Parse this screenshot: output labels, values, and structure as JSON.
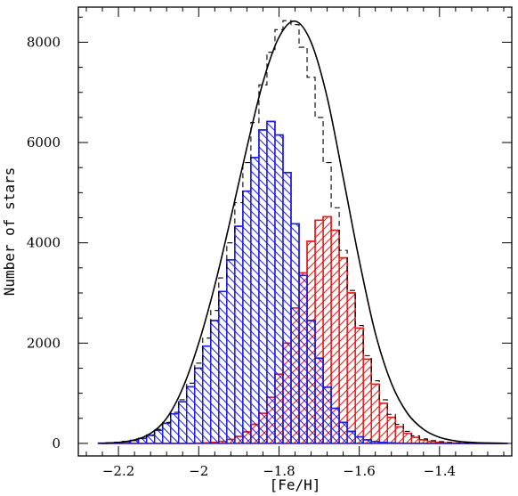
{
  "chart_data": {
    "type": "line",
    "xlabel": "[Fe/H]",
    "ylabel": "Number of stars",
    "xlim": [
      -2.3,
      -1.22
    ],
    "ylim": [
      -250,
      8700
    ],
    "x_ticks": [
      -2.2,
      -2.0,
      -1.8,
      -1.6,
      -1.4
    ],
    "x_tick_labels": [
      "−2.2",
      "−2",
      "−1.8",
      "−1.6",
      "−1.4"
    ],
    "y_ticks": [
      0,
      2000,
      4000,
      6000,
      8000
    ],
    "y_tick_labels": [
      "0",
      "2000",
      "4000",
      "6000",
      "8000"
    ],
    "grid": false,
    "legend": "none",
    "bin_width": 0.02,
    "colors": {
      "total": "#000000",
      "blue": "#1e1ee0",
      "red": "#e01e1e"
    },
    "series": [
      {
        "style": "black-smooth-curve",
        "x": [
          -2.24,
          -2.2,
          -2.16,
          -2.12,
          -2.08,
          -2.04,
          -2.0,
          -1.96,
          -1.92,
          -1.88,
          -1.84,
          -1.8,
          -1.76,
          -1.72,
          -1.68,
          -1.64,
          -1.6,
          -1.56,
          -1.52,
          -1.48,
          -1.44,
          -1.4,
          -1.36,
          -1.32,
          -1.28,
          -1.24
        ],
        "values": [
          3,
          20,
          70,
          200,
          500,
          1100,
          2000,
          3150,
          4500,
          5900,
          7200,
          8100,
          8420,
          8000,
          6900,
          5300,
          3650,
          2200,
          1200,
          600,
          280,
          120,
          50,
          20,
          8,
          3
        ]
      },
      {
        "style": "black-dashed-histogram",
        "x": [
          -2.24,
          -2.22,
          -2.2,
          -2.18,
          -2.16,
          -2.14,
          -2.12,
          -2.1,
          -2.08,
          -2.06,
          -2.04,
          -2.02,
          -2.0,
          -1.98,
          -1.96,
          -1.94,
          -1.92,
          -1.9,
          -1.88,
          -1.86,
          -1.84,
          -1.82,
          -1.8,
          -1.78,
          -1.76,
          -1.74,
          -1.72,
          -1.7,
          -1.68,
          -1.66,
          -1.64,
          -1.62,
          -1.6,
          -1.58,
          -1.56,
          -1.54,
          -1.52,
          -1.5,
          -1.48,
          -1.46,
          -1.44,
          -1.42,
          -1.4,
          -1.38,
          -1.36,
          -1.34,
          -1.32,
          -1.3,
          -1.28,
          -1.26,
          -1.24
        ],
        "values": [
          5,
          10,
          20,
          35,
          60,
          100,
          170,
          280,
          420,
          620,
          870,
          1200,
          1600,
          2100,
          2650,
          3300,
          4000,
          4800,
          5600,
          6400,
          7150,
          7800,
          8250,
          8430,
          8350,
          7900,
          7300,
          6500,
          5600,
          4700,
          3850,
          3050,
          2350,
          1750,
          1250,
          870,
          580,
          380,
          240,
          150,
          90,
          55,
          35,
          20,
          12,
          8,
          5,
          3,
          2,
          1,
          1
        ]
      },
      {
        "style": "blue-hatched-histogram",
        "x": [
          -2.24,
          -2.22,
          -2.2,
          -2.18,
          -2.16,
          -2.14,
          -2.12,
          -2.1,
          -2.08,
          -2.06,
          -2.04,
          -2.02,
          -2.0,
          -1.98,
          -1.96,
          -1.94,
          -1.92,
          -1.9,
          -1.88,
          -1.86,
          -1.84,
          -1.82,
          -1.8,
          -1.78,
          -1.76,
          -1.74,
          -1.72,
          -1.7,
          -1.68,
          -1.66,
          -1.64,
          -1.62,
          -1.6,
          -1.58,
          -1.56,
          -1.54,
          -1.52,
          -1.5,
          -1.48,
          -1.46,
          -1.44,
          -1.42,
          -1.4,
          -1.38,
          -1.36,
          -1.34,
          -1.32,
          -1.3,
          -1.28,
          -1.26,
          -1.24
        ],
        "values": [
          5,
          10,
          20,
          35,
          60,
          100,
          160,
          260,
          400,
          590,
          830,
          1130,
          1500,
          1940,
          2450,
          3030,
          3660,
          4330,
          5030,
          5700,
          6250,
          6420,
          6150,
          5400,
          4380,
          3350,
          2450,
          1700,
          1120,
          700,
          420,
          240,
          130,
          70,
          38,
          20,
          10,
          5,
          3,
          2,
          1,
          0,
          0,
          0,
          0,
          0,
          0,
          0,
          0,
          0,
          0
        ]
      },
      {
        "style": "red-hatched-histogram",
        "x": [
          -2.24,
          -2.22,
          -2.2,
          -2.18,
          -2.16,
          -2.14,
          -2.12,
          -2.1,
          -2.08,
          -2.06,
          -2.04,
          -2.02,
          -2.0,
          -1.98,
          -1.96,
          -1.94,
          -1.92,
          -1.9,
          -1.88,
          -1.86,
          -1.84,
          -1.82,
          -1.8,
          -1.78,
          -1.76,
          -1.74,
          -1.72,
          -1.7,
          -1.68,
          -1.66,
          -1.64,
          -1.62,
          -1.6,
          -1.58,
          -1.56,
          -1.54,
          -1.52,
          -1.5,
          -1.48,
          -1.46,
          -1.44,
          -1.42,
          -1.4,
          -1.38,
          -1.36,
          -1.34,
          -1.32,
          -1.3,
          -1.28,
          -1.26,
          -1.24
        ],
        "values": [
          0,
          0,
          0,
          0,
          0,
          0,
          0,
          0,
          0,
          0,
          0,
          0,
          5,
          10,
          20,
          40,
          80,
          140,
          230,
          380,
          600,
          920,
          1380,
          2000,
          2700,
          3400,
          4030,
          4450,
          4520,
          4250,
          3700,
          3000,
          2300,
          1680,
          1180,
          800,
          520,
          330,
          200,
          120,
          70,
          40,
          22,
          12,
          7,
          4,
          2,
          1,
          1,
          0,
          0
        ]
      }
    ]
  }
}
